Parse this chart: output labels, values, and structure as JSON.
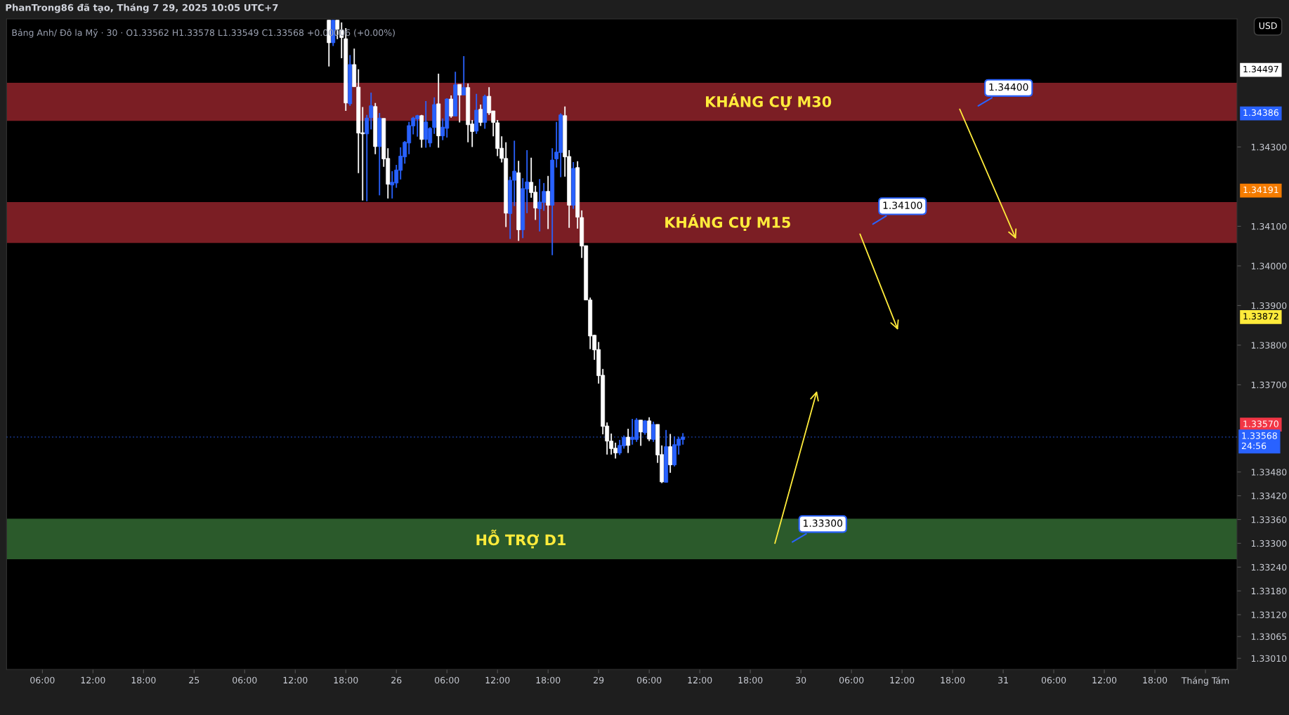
{
  "chart_data": {
    "type": "candlestick",
    "title": "PhanTrong86 đã tạo, Tháng 7 29, 2025 10:05 UTC+7",
    "subtitle": "Bảng Anh/ Đô la Mỹ · 30 · O1.33562 H1.33578 L1.33549 C1.33568 +0.00006 (+0.00%)",
    "categories": [
      null,
      null,
      null,
      null,
      null,
      null,
      null,
      null,
      "06:00",
      null,
      null,
      null,
      null,
      null,
      null,
      null,
      null,
      null,
      null,
      null,
      "12:00",
      null,
      null,
      null,
      null,
      null,
      null,
      null,
      null,
      null,
      null,
      null,
      "18:00",
      null,
      null,
      null,
      null,
      null,
      null,
      null,
      null,
      null,
      null,
      null,
      "25",
      null,
      null,
      null,
      null,
      null,
      null,
      null,
      null,
      null,
      null,
      null,
      "06:00",
      null,
      null,
      null,
      null,
      null,
      null,
      null,
      null,
      null,
      null,
      null,
      "12:00",
      null,
      null,
      null,
      null,
      null,
      null,
      null,
      null,
      null,
      null,
      null,
      "18:00",
      null,
      null,
      null,
      null,
      null,
      null,
      null,
      null,
      null,
      null,
      null,
      "26",
      null,
      null,
      null,
      null,
      null,
      null,
      null,
      null,
      null,
      null,
      null,
      "06:00",
      null,
      null,
      null,
      null,
      null,
      null,
      null,
      null,
      null,
      null,
      null,
      "12:00",
      null,
      null,
      null,
      null,
      null,
      null,
      null,
      null,
      null,
      null,
      null,
      "18:00",
      null,
      null,
      null,
      null,
      null,
      null,
      null,
      null,
      null,
      null,
      null,
      "29",
      null,
      null,
      null,
      null,
      null,
      null,
      null,
      null,
      null,
      null,
      null,
      "06:00",
      null,
      null,
      null,
      null,
      null,
      null,
      null,
      null,
      null,
      null,
      null,
      "12:00",
      null,
      null,
      null,
      null,
      null,
      null,
      null,
      null,
      null,
      null,
      null,
      "18:00",
      null,
      null,
      null,
      null,
      null,
      null,
      null,
      null,
      null,
      null,
      null,
      "30",
      null,
      null,
      null,
      null,
      null,
      null,
      null,
      null,
      null,
      null,
      null,
      "06:00",
      null,
      null,
      null,
      null,
      null,
      null,
      null,
      null,
      null,
      null,
      null,
      "12:00",
      null,
      null,
      null,
      null,
      null,
      null,
      null,
      null,
      null,
      null,
      null,
      "18:00",
      null,
      null,
      null,
      null,
      null,
      null,
      null,
      null,
      null,
      null,
      null,
      "31",
      null,
      null,
      null,
      null,
      null,
      null,
      null,
      null,
      null,
      null,
      null,
      "06:00",
      null,
      null,
      null,
      null,
      null,
      null,
      null,
      null,
      null,
      null,
      null,
      "12:00",
      null,
      null,
      null,
      null,
      null,
      null,
      null,
      null,
      null,
      null,
      null,
      "18:00",
      null,
      null,
      null,
      null,
      null,
      null,
      null,
      null,
      null,
      null,
      null,
      "Tháng Tám",
      null,
      null,
      null,
      null,
      null,
      null,
      null
    ],
    "ohlc": [
      null,
      null,
      null,
      null,
      null,
      null,
      null,
      null,
      null,
      null,
      null,
      null,
      null,
      null,
      null,
      null,
      null,
      null,
      null,
      null,
      null,
      null,
      null,
      null,
      null,
      null,
      null,
      null,
      null,
      null,
      null,
      null,
      null,
      null,
      null,
      null,
      null,
      null,
      null,
      null,
      null,
      null,
      null,
      null,
      null,
      null,
      null,
      null,
      null,
      null,
      null,
      null,
      null,
      null,
      null,
      null,
      null,
      null,
      null,
      null,
      null,
      null,
      null,
      null,
      null,
      null,
      null,
      null,
      null,
      null,
      null,
      null,
      null,
      null,
      null,
      null,
      [
        1.3462,
        1.3462,
        1.34503,
        1.34563
      ],
      [
        1.34563,
        1.3462,
        1.34555,
        1.3462
      ],
      [
        1.3462,
        1.3462,
        1.34572,
        1.34597
      ],
      [
        1.34595,
        1.34614,
        1.34524,
        1.34576
      ],
      [
        1.34573,
        1.346,
        1.34391,
        1.34411
      ],
      [
        1.34409,
        1.34532,
        1.34404,
        1.34508
      ],
      [
        1.34508,
        1.34548,
        1.34452,
        1.34452
      ],
      [
        1.34451,
        1.34496,
        1.34234,
        1.34335
      ],
      [
        1.34336,
        1.34401,
        1.34165,
        1.34333
      ],
      [
        1.34333,
        1.34381,
        1.34163,
        1.34373
      ],
      [
        1.34374,
        1.34437,
        1.34344,
        1.34404
      ],
      [
        1.34402,
        1.34411,
        1.34282,
        1.34301
      ],
      [
        1.34301,
        1.34386,
        1.34178,
        1.34373
      ],
      [
        1.34372,
        1.34372,
        1.3425,
        1.3427
      ],
      [
        1.34271,
        1.34297,
        1.3417,
        1.34206
      ],
      [
        1.34204,
        1.34239,
        1.3417,
        1.34211
      ],
      [
        1.34209,
        1.34255,
        1.34197,
        1.34242
      ],
      [
        1.34241,
        1.34299,
        1.34218,
        1.34277
      ],
      [
        1.34275,
        1.34315,
        1.34258,
        1.34312
      ],
      [
        1.3431,
        1.34363,
        1.34282,
        1.34354
      ],
      [
        1.34353,
        1.34376,
        1.34332,
        1.34373
      ],
      [
        1.34371,
        1.34381,
        1.34326,
        1.34379
      ],
      [
        1.34379,
        1.34381,
        1.34298,
        1.34319
      ],
      [
        1.34319,
        1.34416,
        1.34298,
        1.34363
      ],
      [
        1.3431,
        1.3435,
        1.343,
        1.34347
      ],
      [
        1.34349,
        1.34425,
        1.34333,
        1.34407
      ],
      [
        1.34409,
        1.34485,
        1.34298,
        1.34328
      ],
      [
        1.34328,
        1.34372,
        1.34317,
        1.3435
      ],
      [
        1.34347,
        1.34423,
        1.34324,
        1.34421
      ],
      [
        1.34421,
        1.3443,
        1.34374,
        1.34378
      ],
      [
        1.34378,
        1.3449,
        1.34378,
        1.34457
      ],
      [
        1.34458,
        1.34458,
        1.34362,
        1.34431
      ],
      [
        1.34431,
        1.34529,
        1.34431,
        1.3445
      ],
      [
        1.3445,
        1.3446,
        1.34312,
        1.34356
      ],
      [
        1.34358,
        1.34368,
        1.343,
        1.34339
      ],
      [
        1.3434,
        1.34434,
        1.34333,
        1.34393
      ],
      [
        1.34395,
        1.34407,
        1.34353,
        1.34362
      ],
      [
        1.34362,
        1.34432,
        1.34346,
        1.34428
      ],
      [
        1.34428,
        1.34451,
        1.34381,
        1.34386
      ],
      [
        1.34391,
        1.34391,
        1.34327,
        1.34362
      ],
      [
        1.34361,
        1.34368,
        1.34277,
        1.34296
      ],
      [
        1.34297,
        1.34327,
        1.34261,
        1.34271
      ],
      [
        1.34271,
        1.34312,
        1.34098,
        1.34133
      ],
      [
        1.34132,
        1.34225,
        1.34068,
        1.34216
      ],
      [
        1.34216,
        1.34316,
        1.34151,
        1.34239
      ],
      [
        1.34235,
        1.34265,
        1.34063,
        1.34091
      ],
      [
        1.34091,
        1.34221,
        1.3407,
        1.34195
      ],
      [
        1.34194,
        1.34292,
        1.34133,
        1.34212
      ],
      [
        1.34211,
        1.34273,
        1.34172,
        1.34185
      ],
      [
        1.34186,
        1.34202,
        1.34116,
        1.34146
      ],
      [
        1.34144,
        1.34219,
        1.34087,
        1.34161
      ],
      [
        1.3416,
        1.34209,
        1.34139,
        1.34188
      ],
      [
        1.34188,
        1.34227,
        1.34093,
        1.34153
      ],
      [
        1.34153,
        1.34297,
        1.34027,
        1.34267
      ],
      [
        1.3427,
        1.34363,
        1.34248,
        1.34287
      ],
      [
        1.34286,
        1.34385,
        1.34224,
        1.34381
      ],
      [
        1.34379,
        1.34402,
        1.34225,
        1.34275
      ],
      [
        1.34276,
        1.34292,
        1.34096,
        1.34153
      ],
      [
        1.34153,
        1.34262,
        1.34144,
        1.34246
      ],
      [
        1.34248,
        1.34264,
        1.34094,
        1.34123
      ],
      [
        1.34122,
        1.3414,
        1.3402,
        1.3405
      ],
      [
        1.34051,
        1.34051,
        1.33914,
        1.33914
      ],
      [
        1.33914,
        1.3392,
        1.3379,
        1.33823
      ],
      [
        1.33825,
        1.33826,
        1.33763,
        1.33788
      ],
      [
        1.33789,
        1.33808,
        1.33703,
        1.33723
      ],
      [
        1.33724,
        1.3374,
        1.33575,
        1.33595
      ],
      [
        1.33596,
        1.33605,
        1.33524,
        1.33558
      ],
      [
        1.33558,
        1.33577,
        1.33524,
        1.33539
      ],
      [
        1.3354,
        1.33554,
        1.33514,
        1.33528
      ],
      [
        1.33528,
        1.33561,
        1.33523,
        1.33547
      ],
      [
        1.33546,
        1.33572,
        1.33539,
        1.33567
      ],
      [
        1.33568,
        1.33589,
        1.33528,
        1.33547
      ],
      [
        1.33562,
        1.33614,
        1.33549,
        1.33568
      ],
      [
        1.33562,
        1.33616,
        1.33556,
        1.33611
      ],
      [
        1.33611,
        1.33611,
        1.33546,
        1.33581
      ],
      [
        1.33579,
        1.33611,
        1.33574,
        1.33609
      ],
      [
        1.33609,
        1.33618,
        1.33558,
        1.33563
      ],
      [
        1.33562,
        1.33607,
        1.33556,
        1.336
      ],
      [
        1.336,
        1.336,
        1.33503,
        1.33523
      ],
      [
        1.33524,
        1.33547,
        1.33452,
        1.33455
      ],
      [
        1.33454,
        1.33586,
        1.33454,
        1.33544
      ],
      [
        1.33544,
        1.33576,
        1.33478,
        1.33498
      ],
      [
        1.33498,
        1.3357,
        1.33494,
        1.33549
      ],
      [
        1.33547,
        1.33569,
        1.33524,
        1.33563
      ],
      [
        1.33562,
        1.33578,
        1.33549,
        1.33568
      ],
      null,
      null,
      null,
      null,
      null,
      null,
      null,
      null,
      null,
      null,
      null,
      null,
      null,
      null,
      null,
      null,
      null,
      null,
      null,
      null,
      null,
      null,
      null,
      null,
      null,
      null,
      null,
      null,
      null,
      null,
      null,
      null,
      null,
      null,
      null,
      null,
      null,
      null,
      null,
      null,
      null,
      null,
      null,
      null,
      null,
      null,
      null,
      null,
      null,
      null,
      null,
      null,
      null,
      null,
      null,
      null,
      null,
      null,
      null,
      null,
      null,
      null,
      null,
      null,
      null,
      null,
      null,
      null,
      null,
      null,
      null,
      null,
      null,
      null,
      null,
      null,
      null,
      null,
      null,
      null,
      null,
      null,
      null,
      null,
      null,
      null,
      null,
      null,
      null,
      null,
      null,
      null,
      null,
      null,
      null,
      null,
      null,
      null,
      null,
      null,
      null,
      null,
      null,
      null,
      null,
      null,
      null,
      null,
      null,
      null,
      null,
      null,
      null,
      null,
      null,
      null,
      null,
      null,
      null,
      null,
      null,
      null,
      null,
      null,
      null,
      null,
      null,
      null,
      null,
      null,
      null
    ],
    "colors": [
      null,
      null,
      null,
      null,
      null,
      null,
      null,
      null,
      null,
      null,
      null,
      null,
      null,
      null,
      null,
      null,
      null,
      null,
      null,
      null,
      null,
      null,
      null,
      null,
      null,
      null,
      null,
      null,
      null,
      null,
      null,
      null,
      null,
      null,
      null,
      null,
      null,
      null,
      null,
      null,
      null,
      null,
      null,
      null,
      null,
      null,
      null,
      null,
      null,
      null,
      null,
      null,
      null,
      null,
      null,
      null,
      null,
      null,
      null,
      null,
      null,
      null,
      null,
      null,
      null,
      null,
      null,
      null,
      null,
      null,
      null,
      null,
      null,
      null,
      null,
      null,
      "#ffffff",
      "#2962ff",
      "#ffffff",
      "#ffffff",
      "#ffffff",
      "#2962ff",
      "#ffffff",
      "#ffffff",
      "#ffffff",
      "#2962ff",
      "#2962ff",
      "#ffffff",
      "#2962ff",
      "#ffffff",
      "#ffffff",
      "#2962ff",
      "#2962ff",
      "#2962ff",
      "#2962ff",
      "#2962ff",
      "#2962ff",
      "#2962ff",
      "#ffffff",
      "#2962ff",
      "#2962ff",
      "#2962ff",
      "#ffffff",
      "#2962ff",
      "#2962ff",
      "#ffffff",
      "#2962ff",
      "#ffffff",
      "#2962ff",
      "#ffffff",
      "#ffffff",
      "#2962ff",
      "#ffffff",
      "#2962ff",
      "#ffffff",
      "#ffffff",
      "#ffffff",
      "#ffffff",
      "#ffffff",
      "#2962ff",
      "#2962ff",
      "#ffffff",
      "#2962ff",
      "#2962ff",
      "#ffffff",
      "#ffffff",
      "#2962ff",
      "#2962ff",
      "#ffffff",
      "#2962ff",
      "#2962ff",
      "#2962ff",
      "#ffffff",
      "#ffffff",
      "#2962ff",
      "#ffffff",
      "#ffffff",
      "#ffffff",
      "#ffffff",
      "#ffffff",
      "#ffffff",
      "#ffffff",
      "#ffffff",
      "#ffffff",
      "#ffffff",
      "#2962ff",
      "#2962ff",
      "#ffffff",
      "#2962ff",
      "#2962ff",
      "#ffffff",
      "#2962ff",
      "#ffffff",
      "#2962ff",
      "#ffffff",
      "#ffffff",
      "#2962ff",
      "#ffffff",
      "#2962ff",
      "#2962ff",
      "#2962ff",
      null,
      null,
      null,
      null,
      null,
      null,
      null,
      null,
      null,
      null,
      null,
      null,
      null,
      null,
      null,
      null,
      null,
      null,
      null,
      null,
      null,
      null,
      null,
      null,
      null,
      null,
      null,
      null,
      null,
      null,
      null,
      null,
      null,
      null,
      null,
      null,
      null,
      null,
      null,
      null,
      null,
      null,
      null,
      null,
      null,
      null,
      null,
      null,
      null,
      null,
      null,
      null,
      null,
      null,
      null,
      null,
      null,
      null,
      null,
      null,
      null,
      null,
      null,
      null,
      null,
      null,
      null,
      null,
      null,
      null,
      null,
      null,
      null,
      null,
      null,
      null,
      null,
      null,
      null,
      null,
      null,
      null,
      null,
      null,
      null,
      null,
      null,
      null,
      null,
      null,
      null,
      null,
      null,
      null,
      null,
      null,
      null,
      null,
      null,
      null,
      null,
      null,
      null,
      null,
      null,
      null,
      null,
      null,
      null,
      null,
      null,
      null,
      null,
      null,
      null,
      null,
      null,
      null,
      null,
      null,
      null,
      null,
      null,
      null,
      null,
      null,
      null,
      null,
      null,
      null,
      null
    ],
    "ylim": [
      1.32982,
      1.34623
    ],
    "yticks": [
      {
        "value": 1.343,
        "label": "1.34300"
      },
      {
        "value": 1.341,
        "label": "1.34100"
      },
      {
        "value": 1.34,
        "label": "1.34000"
      },
      {
        "value": 1.339,
        "label": "1.33900"
      },
      {
        "value": 1.338,
        "label": "1.33800"
      },
      {
        "value": 1.337,
        "label": "1.33700"
      },
      {
        "value": 1.3348,
        "label": "1.33480"
      },
      {
        "value": 1.3342,
        "label": "1.33420"
      },
      {
        "value": 1.3336,
        "label": "1.33360"
      },
      {
        "value": 1.333,
        "label": "1.33300"
      },
      {
        "value": 1.3324,
        "label": "1.33240"
      },
      {
        "value": 1.3318,
        "label": "1.33180"
      },
      {
        "value": 1.3312,
        "label": "1.33120"
      },
      {
        "value": 1.33065,
        "label": "1.33065"
      },
      {
        "value": 1.3301,
        "label": "1.33010"
      }
    ],
    "bands": [
      {
        "axis": "y",
        "from": 1.34366,
        "to": 1.34462,
        "label": "KHÁNG CỰ M30",
        "color": "#7b1e24"
      },
      {
        "axis": "y",
        "from": 1.34058,
        "to": 1.34161,
        "label": "KHÁNG CỰ M15",
        "color": "#7b1e24"
      },
      {
        "axis": "y",
        "from": 1.3326,
        "to": 1.33362,
        "label": "HỖ TRỢ D1",
        "color": "#2b5a2b"
      }
    ],
    "ref_lines": [
      {
        "axis": "y",
        "value": 1.33568,
        "label": "1.33568\n24:56",
        "color": "#2962ff",
        "line_style": "dotted"
      }
    ],
    "annotations": [
      "USD",
      "1.34400",
      "1.34100",
      "1.33300",
      "1.34497",
      "1.34386",
      "1.34191",
      "1.33872",
      "1.33570"
    ]
  }
}
